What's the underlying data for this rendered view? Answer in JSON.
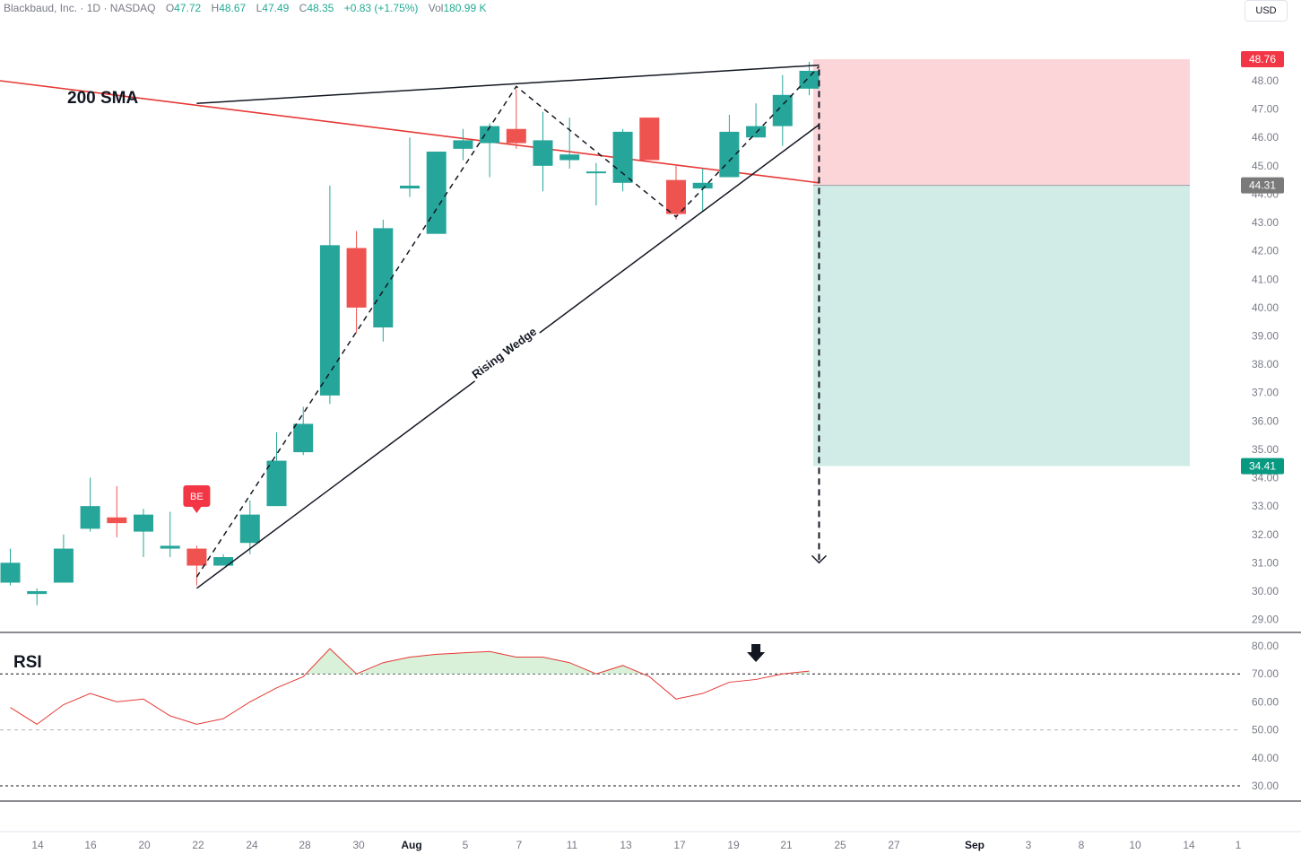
{
  "header": {
    "symbol": "Blackbaud, Inc.",
    "interval": "1D",
    "exchange": "NASDAQ",
    "open_label": "O",
    "open": "47.72",
    "high_label": "H",
    "high": "48.67",
    "low_label": "L",
    "low": "47.49",
    "close_label": "C",
    "close": "48.35",
    "change": "+0.83 (+1.75%)",
    "vol_label": "Vol",
    "vol": "180.99 K",
    "currency": "USD"
  },
  "colors": {
    "up": "#26a69a",
    "down": "#ef5350",
    "sma": "#e53935",
    "stop_zone": "#fbd5d8",
    "target_zone": "#d1ece6",
    "stop_label": "#f23645",
    "entry_label": "#7a7a7a",
    "target_label": "#089981",
    "rsi_line": "#e53935"
  },
  "chart_data": [
    {
      "type": "candlestick",
      "xaxis_labels": [
        "14",
        "16",
        "20",
        "22",
        "24",
        "28",
        "30",
        "Aug",
        "5",
        "7",
        "11",
        "13",
        "17",
        "19",
        "21",
        "25",
        "27",
        "Sep",
        "3",
        "8",
        "10",
        "14",
        "1"
      ],
      "yaxis_ticks": [
        "48.00",
        "47.00",
        "46.00",
        "45.00",
        "44.00",
        "43.00",
        "42.00",
        "41.00",
        "40.00",
        "39.00",
        "38.00",
        "37.00",
        "36.00",
        "35.00",
        "34.00",
        "33.00",
        "32.00",
        "31.00",
        "30.00",
        "29.00"
      ],
      "ylim": [
        28.6,
        49.2
      ],
      "candles": [
        {
          "o": 30.3,
          "h": 31.5,
          "l": 30.2,
          "c": 31.0
        },
        {
          "o": 29.9,
          "h": 30.1,
          "l": 29.5,
          "c": 30.0
        },
        {
          "o": 30.3,
          "h": 32.0,
          "l": 30.3,
          "c": 31.5
        },
        {
          "o": 32.2,
          "h": 34.0,
          "l": 32.1,
          "c": 33.0
        },
        {
          "o": 32.6,
          "h": 33.7,
          "l": 31.9,
          "c": 32.4
        },
        {
          "o": 32.1,
          "h": 32.9,
          "l": 31.2,
          "c": 32.7
        },
        {
          "o": 31.5,
          "h": 32.8,
          "l": 31.2,
          "c": 31.6
        },
        {
          "o": 31.5,
          "h": 31.6,
          "l": 30.2,
          "c": 30.9
        },
        {
          "o": 30.9,
          "h": 31.3,
          "l": 30.9,
          "c": 31.2
        },
        {
          "o": 31.7,
          "h": 33.2,
          "l": 31.3,
          "c": 32.7
        },
        {
          "o": 33.0,
          "h": 35.6,
          "l": 33.0,
          "c": 34.6
        },
        {
          "o": 34.9,
          "h": 36.5,
          "l": 34.8,
          "c": 35.9
        },
        {
          "o": 36.9,
          "h": 44.3,
          "l": 36.6,
          "c": 42.2
        },
        {
          "o": 42.1,
          "h": 42.7,
          "l": 39.1,
          "c": 40.0
        },
        {
          "o": 39.3,
          "h": 43.1,
          "l": 38.8,
          "c": 42.8
        },
        {
          "o": 44.2,
          "h": 46.0,
          "l": 43.9,
          "c": 44.3
        },
        {
          "o": 42.6,
          "h": 45.5,
          "l": 42.6,
          "c": 45.5
        },
        {
          "o": 45.6,
          "h": 46.3,
          "l": 45.2,
          "c": 45.9
        },
        {
          "o": 45.8,
          "h": 46.5,
          "l": 44.6,
          "c": 46.4
        },
        {
          "o": 46.3,
          "h": 47.7,
          "l": 45.6,
          "c": 45.8
        },
        {
          "o": 45.0,
          "h": 46.9,
          "l": 44.1,
          "c": 45.9
        },
        {
          "o": 45.2,
          "h": 46.7,
          "l": 44.9,
          "c": 45.4
        },
        {
          "o": 44.8,
          "h": 45.1,
          "l": 43.6,
          "c": 44.8
        },
        {
          "o": 44.4,
          "h": 46.3,
          "l": 44.1,
          "c": 46.2
        },
        {
          "o": 46.7,
          "h": 46.7,
          "l": 45.2,
          "c": 45.2
        },
        {
          "o": 44.5,
          "h": 45.0,
          "l": 43.1,
          "c": 43.3
        },
        {
          "o": 44.2,
          "h": 44.9,
          "l": 43.4,
          "c": 44.4
        },
        {
          "o": 44.6,
          "h": 46.8,
          "l": 44.6,
          "c": 46.2
        },
        {
          "o": 46.0,
          "h": 47.2,
          "l": 46.0,
          "c": 46.4
        },
        {
          "o": 46.4,
          "h": 48.2,
          "l": 45.7,
          "c": 47.5
        },
        {
          "o": 47.72,
          "h": 48.67,
          "l": 47.49,
          "c": 48.35
        }
      ],
      "sma_label": "200 SMA",
      "sma": {
        "start": 48.0,
        "end": 44.4
      },
      "pattern_label": "Rising Wedge",
      "signal_label": "BE",
      "position": {
        "stop_price": "48.76",
        "entry_price": "44.31",
        "target_price": "34.41",
        "stop": 48.76,
        "entry": 44.31,
        "target": 34.41
      },
      "projection_target": 31.0
    },
    {
      "type": "line",
      "title": "RSI",
      "yaxis_ticks": [
        "80.00",
        "70.00",
        "60.00",
        "50.00",
        "40.00",
        "30.00"
      ],
      "ylim": [
        25,
        83
      ],
      "levels": [
        70,
        50,
        30
      ],
      "values": [
        58,
        52,
        59,
        63,
        60,
        61,
        55,
        52,
        54,
        60,
        65,
        69,
        79,
        70,
        74,
        76,
        77,
        77.5,
        78,
        76,
        76,
        74,
        70,
        73,
        69,
        61,
        63,
        67,
        68,
        70,
        71
      ]
    }
  ]
}
